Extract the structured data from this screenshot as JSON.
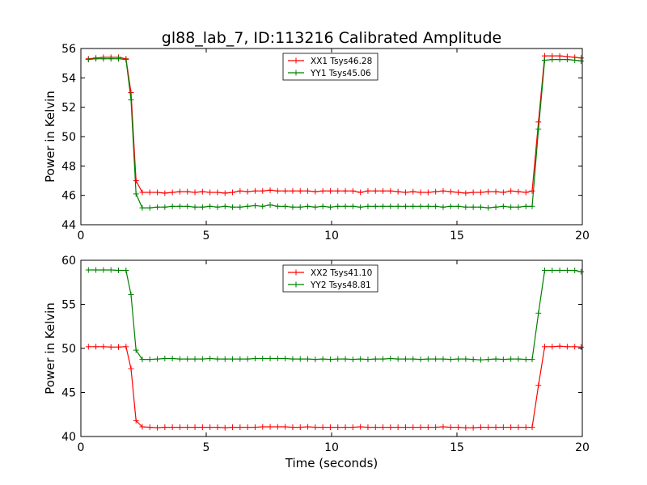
{
  "figure": {
    "title": "gl88_lab_7, ID:113216 Calibrated Amplitude",
    "xlabel": "Time (seconds)"
  },
  "chart_data": [
    {
      "type": "line",
      "ylabel": "Power in Kelvin",
      "xlim": [
        0,
        20
      ],
      "ylim": [
        44,
        56
      ],
      "xticks": [
        0,
        5,
        10,
        15,
        20
      ],
      "yticks": [
        44,
        46,
        48,
        50,
        52,
        54,
        56
      ],
      "legend_position": "top-center",
      "x": [
        0.3,
        0.6,
        0.9,
        1.2,
        1.5,
        1.8,
        2.0,
        2.2,
        2.45,
        2.75,
        3.05,
        3.35,
        3.65,
        3.95,
        4.25,
        4.55,
        4.85,
        5.15,
        5.45,
        5.75,
        6.05,
        6.35,
        6.65,
        6.95,
        7.25,
        7.55,
        7.85,
        8.15,
        8.45,
        8.75,
        9.05,
        9.35,
        9.65,
        9.95,
        10.25,
        10.55,
        10.85,
        11.15,
        11.45,
        11.75,
        12.05,
        12.35,
        12.65,
        12.95,
        13.25,
        13.55,
        13.85,
        14.15,
        14.45,
        14.75,
        15.05,
        15.35,
        15.65,
        15.95,
        16.25,
        16.55,
        16.85,
        17.15,
        17.45,
        17.75,
        18.0,
        18.25,
        18.5,
        18.8,
        19.1,
        19.4,
        19.7,
        19.95
      ],
      "series": [
        {
          "name": "XX1 Tsys46.28",
          "color": "#ff0000",
          "values": [
            55.3,
            55.35,
            55.4,
            55.4,
            55.4,
            55.3,
            53.0,
            47.0,
            46.2,
            46.2,
            46.2,
            46.15,
            46.2,
            46.25,
            46.25,
            46.2,
            46.25,
            46.2,
            46.2,
            46.15,
            46.2,
            46.3,
            46.25,
            46.3,
            46.3,
            46.35,
            46.3,
            46.3,
            46.3,
            46.3,
            46.3,
            46.25,
            46.3,
            46.3,
            46.3,
            46.3,
            46.3,
            46.2,
            46.3,
            46.3,
            46.3,
            46.3,
            46.25,
            46.2,
            46.25,
            46.2,
            46.2,
            46.25,
            46.3,
            46.25,
            46.2,
            46.15,
            46.2,
            46.2,
            46.25,
            46.25,
            46.2,
            46.3,
            46.25,
            46.2,
            46.3,
            51.0,
            55.5,
            55.5,
            55.5,
            55.45,
            55.4,
            55.35
          ]
        },
        {
          "name": "YY1 Tsys45.06",
          "color": "#008000",
          "values": [
            55.25,
            55.3,
            55.3,
            55.3,
            55.3,
            55.25,
            52.5,
            46.1,
            45.15,
            45.15,
            45.2,
            45.2,
            45.25,
            45.25,
            45.25,
            45.2,
            45.2,
            45.25,
            45.2,
            45.25,
            45.2,
            45.2,
            45.25,
            45.3,
            45.25,
            45.35,
            45.25,
            45.25,
            45.2,
            45.2,
            45.25,
            45.2,
            45.25,
            45.2,
            45.25,
            45.25,
            45.25,
            45.2,
            45.25,
            45.25,
            45.25,
            45.25,
            45.25,
            45.25,
            45.25,
            45.25,
            45.25,
            45.25,
            45.2,
            45.25,
            45.25,
            45.2,
            45.2,
            45.2,
            45.15,
            45.2,
            45.25,
            45.2,
            45.2,
            45.25,
            45.25,
            50.5,
            55.2,
            55.25,
            55.25,
            55.25,
            55.2,
            55.15
          ]
        }
      ]
    },
    {
      "type": "line",
      "ylabel": "Power in Kelvin",
      "xlim": [
        0,
        20
      ],
      "ylim": [
        40,
        60
      ],
      "xticks": [
        0,
        5,
        10,
        15,
        20
      ],
      "yticks": [
        40,
        45,
        50,
        55,
        60
      ],
      "legend_position": "top-center",
      "x": [
        0.3,
        0.6,
        0.9,
        1.2,
        1.5,
        1.8,
        2.0,
        2.2,
        2.45,
        2.75,
        3.05,
        3.35,
        3.65,
        3.95,
        4.25,
        4.55,
        4.85,
        5.15,
        5.45,
        5.75,
        6.05,
        6.35,
        6.65,
        6.95,
        7.25,
        7.55,
        7.85,
        8.15,
        8.45,
        8.75,
        9.05,
        9.35,
        9.65,
        9.95,
        10.25,
        10.55,
        10.85,
        11.15,
        11.45,
        11.75,
        12.05,
        12.35,
        12.65,
        12.95,
        13.25,
        13.55,
        13.85,
        14.15,
        14.45,
        14.75,
        15.05,
        15.35,
        15.65,
        15.95,
        16.25,
        16.55,
        16.85,
        17.15,
        17.45,
        17.75,
        18.0,
        18.25,
        18.5,
        18.8,
        19.1,
        19.4,
        19.7,
        19.95
      ],
      "series": [
        {
          "name": "XX2 Tsys41.10",
          "color": "#ff0000",
          "values": [
            50.2,
            50.2,
            50.2,
            50.15,
            50.15,
            50.2,
            47.7,
            41.8,
            41.1,
            41.05,
            41.0,
            41.05,
            41.05,
            41.05,
            41.05,
            41.05,
            41.05,
            41.05,
            41.05,
            41.0,
            41.05,
            41.05,
            41.05,
            41.05,
            41.1,
            41.1,
            41.1,
            41.1,
            41.05,
            41.05,
            41.1,
            41.05,
            41.05,
            41.05,
            41.05,
            41.05,
            41.05,
            41.1,
            41.05,
            41.05,
            41.05,
            41.05,
            41.05,
            41.05,
            41.05,
            41.05,
            41.05,
            41.05,
            41.1,
            41.05,
            41.05,
            41.0,
            41.0,
            41.05,
            41.05,
            41.05,
            41.05,
            41.05,
            41.05,
            41.05,
            41.05,
            45.8,
            50.2,
            50.2,
            50.25,
            50.2,
            50.2,
            50.15
          ]
        },
        {
          "name": "YY2 Tsys48.81",
          "color": "#008000",
          "values": [
            58.9,
            58.9,
            58.9,
            58.9,
            58.85,
            58.85,
            56.1,
            49.8,
            48.75,
            48.75,
            48.8,
            48.85,
            48.85,
            48.8,
            48.8,
            48.8,
            48.8,
            48.85,
            48.8,
            48.8,
            48.8,
            48.8,
            48.8,
            48.85,
            48.85,
            48.85,
            48.85,
            48.85,
            48.8,
            48.8,
            48.8,
            48.75,
            48.8,
            48.75,
            48.8,
            48.8,
            48.75,
            48.8,
            48.75,
            48.8,
            48.8,
            48.85,
            48.8,
            48.8,
            48.8,
            48.75,
            48.8,
            48.8,
            48.8,
            48.75,
            48.8,
            48.8,
            48.75,
            48.7,
            48.75,
            48.8,
            48.75,
            48.8,
            48.8,
            48.75,
            48.75,
            54.0,
            58.85,
            58.85,
            58.85,
            58.85,
            58.85,
            58.7
          ]
        }
      ]
    }
  ]
}
